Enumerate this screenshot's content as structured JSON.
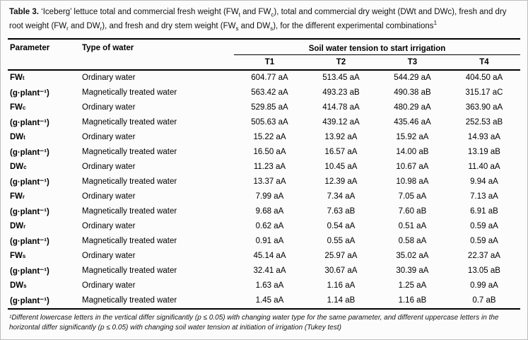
{
  "title": {
    "segments": [
      {
        "text": "Table 3. ",
        "bold": true
      },
      {
        "text": "‘Iceberg’ lettuce total and commercial fresh weight (FW"
      },
      {
        "text": "t",
        "style": "sub"
      },
      {
        "text": " and FW"
      },
      {
        "text": "c",
        "style": "sub"
      },
      {
        "text": "), total and commercial dry weight (DWt and DWc), fresh and dry root weight (FW"
      },
      {
        "text": "r",
        "style": "sub"
      },
      {
        "text": " and DW"
      },
      {
        "text": "r",
        "style": "sub"
      },
      {
        "text": "), and fresh and dry stem weight (FW"
      },
      {
        "text": "s",
        "style": "sub"
      },
      {
        "text": " and DW"
      },
      {
        "text": "s",
        "style": "sub"
      },
      {
        "text": "), for the different experimental combinations"
      },
      {
        "text": "1",
        "style": "sup"
      }
    ]
  },
  "header": {
    "parameter": "Parameter",
    "water_type": "Type of water",
    "tension_group": "Soil water tension to start irrigation",
    "tensions": [
      "T1",
      "T2",
      "T3",
      "T4"
    ]
  },
  "groups": [
    {
      "param_base": "FW",
      "param_sub": "t",
      "unit": "(g·plant⁻¹)",
      "rows": [
        {
          "water": "Ordinary water",
          "values": [
            "604.77 aA",
            "513.45 aA",
            "544.29 aA",
            "404.50 aA"
          ]
        },
        {
          "water": "Magnetically treated water",
          "values": [
            "563.42 aA",
            "493.23 aB",
            "490.38 aB",
            "315.17 aC"
          ]
        }
      ]
    },
    {
      "param_base": "FW",
      "param_sub": "c",
      "unit": "(g·plant⁻¹)",
      "rows": [
        {
          "water": "Ordinary water",
          "values": [
            "529.85 aA",
            "414.78 aA",
            "480.29 aA",
            "363.90 aA"
          ]
        },
        {
          "water": "Magnetically treated water",
          "values": [
            "505.63 aA",
            "439.12 aA",
            "435.46 aA",
            "252.53 aB"
          ]
        }
      ]
    },
    {
      "param_base": "DW",
      "param_sub": "t",
      "unit": "(g·plant⁻¹)",
      "rows": [
        {
          "water": "Ordinary water",
          "values": [
            "15.22 aA",
            "13.92 aA",
            "15.92 aA",
            "14.93 aA"
          ]
        },
        {
          "water": "Magnetically treated water",
          "values": [
            "16.50 aA",
            "16.57 aA",
            "14.00 aB",
            "13.19 aB"
          ]
        }
      ]
    },
    {
      "param_base": "DW",
      "param_sub": "c",
      "unit": "(g·plant⁻¹)",
      "rows": [
        {
          "water": "Ordinary water",
          "values": [
            "11.23 aA",
            "10.45 aA",
            "10.67 aA",
            "11.40 aA"
          ]
        },
        {
          "water": "Magnetically treated water",
          "values": [
            "13.37 aA",
            "12.39 aA",
            "10.98 aA",
            "9.94 aA"
          ]
        }
      ]
    },
    {
      "param_base": "FW",
      "param_sub": "r",
      "unit": "(g·plant⁻¹)",
      "rows": [
        {
          "water": "Ordinary water",
          "values": [
            "7.99 aA",
            "7.34 aA",
            "7.05 aA",
            "7.13 aA"
          ]
        },
        {
          "water": "Magnetically treated water",
          "values": [
            "9.68 aA",
            "7.63 aB",
            "7.60 aB",
            "6.91 aB"
          ]
        }
      ]
    },
    {
      "param_base": "DW",
      "param_sub": "r",
      "unit": "(g·plant⁻¹)",
      "rows": [
        {
          "water": "Ordinary water",
          "values": [
            "0.62 aA",
            "0.54 aA",
            "0.51 aA",
            "0.59 aA"
          ]
        },
        {
          "water": "Magnetically treated water",
          "values": [
            "0.91 aA",
            "0.55 aA",
            "0.58 aA",
            "0.59 aA"
          ]
        }
      ]
    },
    {
      "param_base": "FW",
      "param_sub": "s",
      "unit": "(g·plant⁻¹)",
      "rows": [
        {
          "water": "Ordinary water",
          "values": [
            "45.14 aA",
            "25.97 aA",
            "35.02 aA",
            "22.37 aA"
          ]
        },
        {
          "water": "Magnetically treated water",
          "values": [
            "32.41 aA",
            "30.67 aA",
            "30.39 aA",
            "13.05 aB"
          ]
        }
      ]
    },
    {
      "param_base": "DW",
      "param_sub": "s",
      "unit": "(g·plant⁻¹)",
      "rows": [
        {
          "water": "Ordinary water",
          "values": [
            "1.63 aA",
            "1.16 aA",
            "1.25 aA",
            "0.99 aA"
          ]
        },
        {
          "water": "Magnetically treated water",
          "values": [
            "1.45 aA",
            "1.14 aB",
            "1.16 aB",
            "0.7 aB"
          ]
        }
      ]
    }
  ],
  "footnote": "¹Different lowercase letters in the vertical differ significantly (p ≤ 0.05) with changing water type for the same parameter, and different uppercase letters in the horizontal differ significantly (p ≤ 0.05) with changing soil water tension at initiation of irrigation (Tukey test)"
}
